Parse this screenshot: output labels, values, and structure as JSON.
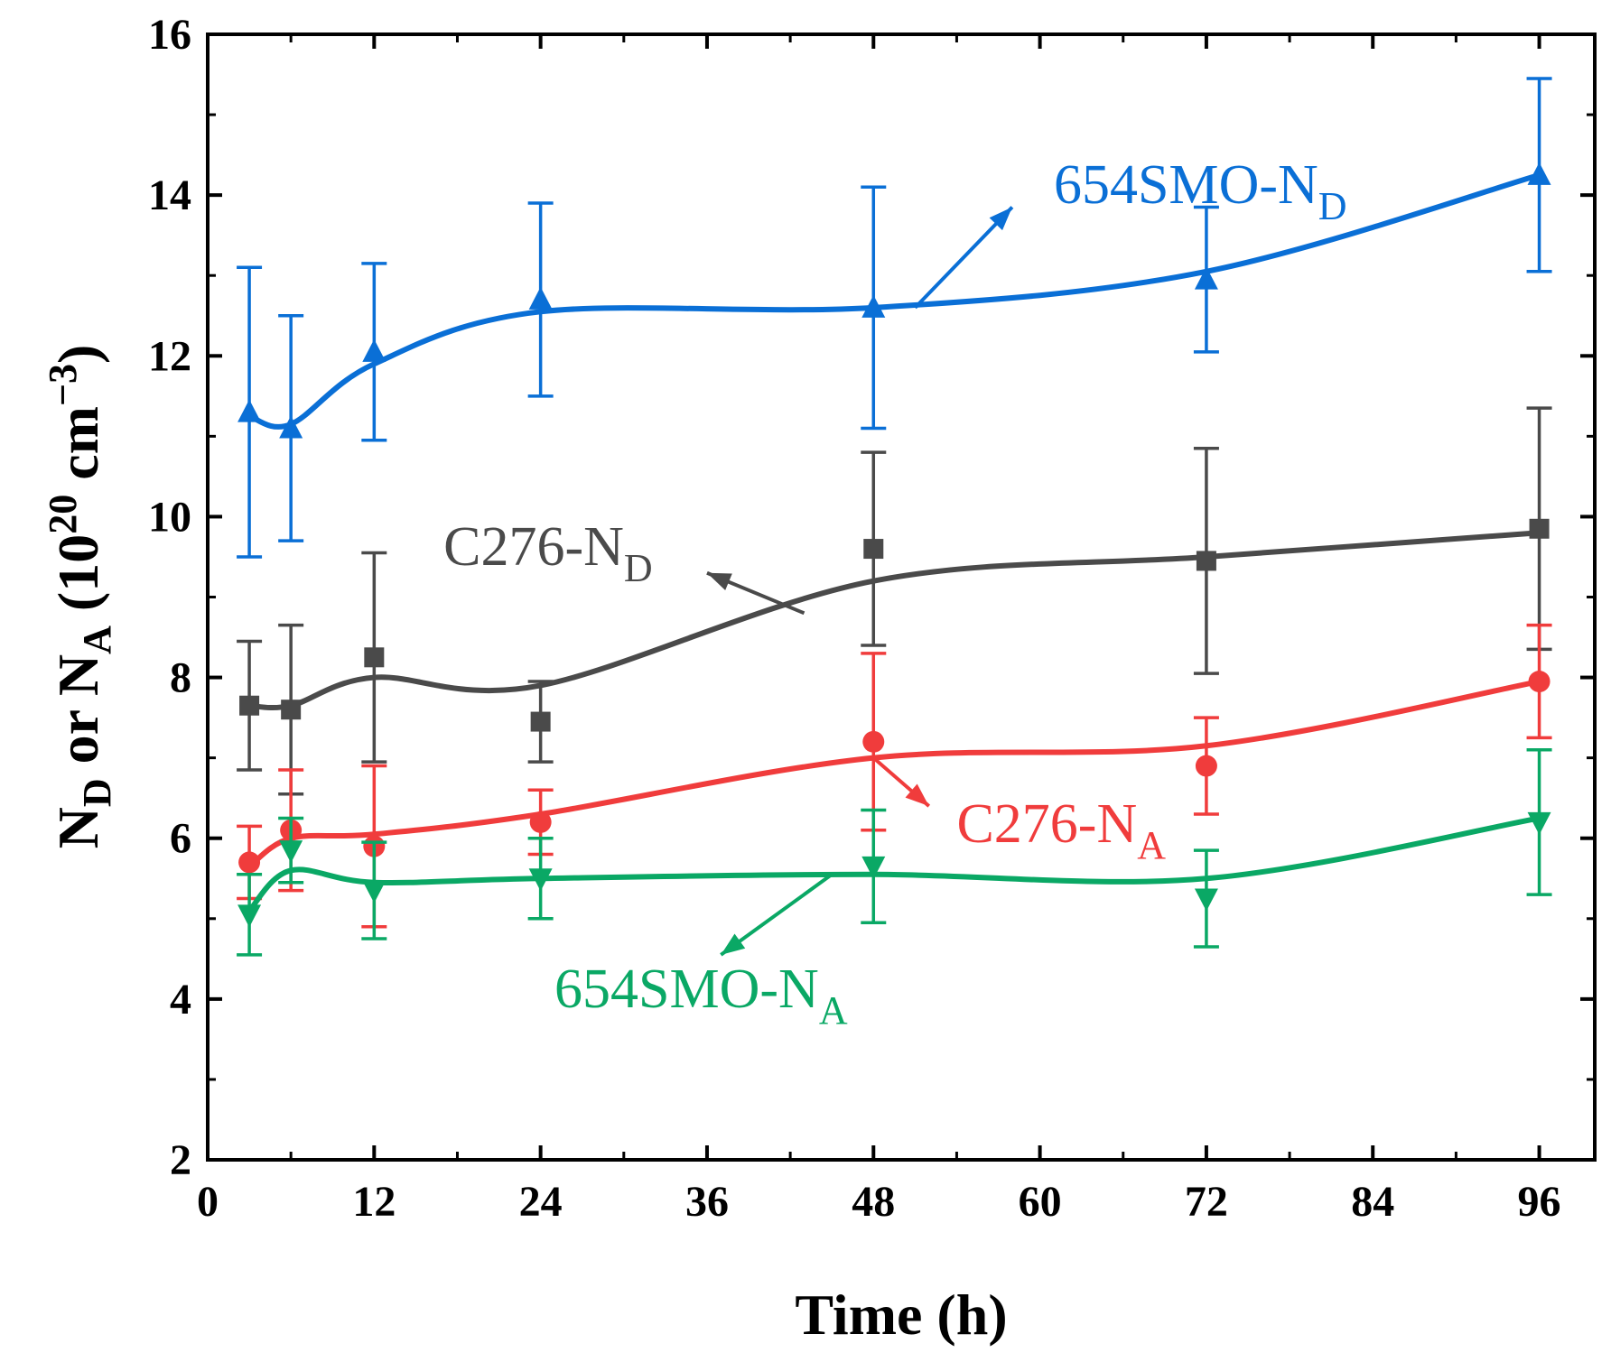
{
  "chart_data": {
    "type": "line",
    "title": "",
    "xlabel": "Time (h)",
    "ylabel": {
      "base": "N",
      "sub1": "D",
      "or": " or ",
      "sub2": "A",
      "unit_open": " (10",
      "sup1": "20",
      "unit_mid": " cm",
      "sup2": "−3",
      "unit_close": ")"
    },
    "xlim": [
      0,
      100
    ],
    "ylim": [
      2,
      16
    ],
    "xticks": [
      0,
      12,
      24,
      36,
      48,
      60,
      72,
      84,
      96
    ],
    "yticks": [
      2,
      4,
      6,
      8,
      10,
      12,
      14,
      16
    ],
    "x": [
      3,
      6,
      12,
      24,
      48,
      72,
      96
    ],
    "series": [
      {
        "id": "smo-nd",
        "label_main": "654SMO-N",
        "label_sub": "D",
        "color": "#0a6fd6",
        "marker": "triangle-up",
        "values": [
          11.3,
          11.1,
          12.05,
          12.7,
          12.6,
          12.95,
          14.25
        ],
        "err": [
          1.8,
          1.4,
          1.1,
          1.2,
          1.5,
          0.9,
          1.2
        ],
        "fit": [
          11.25,
          11.15,
          11.9,
          12.55,
          12.6,
          13.05,
          14.25
        ]
      },
      {
        "id": "c276-nd",
        "label_main": "C276-N",
        "label_sub": "D",
        "color": "#4a4a4a",
        "marker": "square",
        "values": [
          7.65,
          7.6,
          8.25,
          7.45,
          9.6,
          9.45,
          9.85
        ],
        "err": [
          0.8,
          1.05,
          1.3,
          0.5,
          1.2,
          1.4,
          1.5
        ],
        "fit": [
          7.65,
          7.65,
          8.0,
          7.9,
          9.2,
          9.5,
          9.8
        ]
      },
      {
        "id": "c276-na",
        "label_main": "C276-N",
        "label_sub": "A",
        "color": "#f03c3c",
        "marker": "circle",
        "values": [
          5.7,
          6.1,
          5.9,
          6.2,
          7.2,
          6.9,
          7.95
        ],
        "err": [
          0.45,
          0.75,
          1.0,
          0.4,
          1.1,
          0.6,
          0.7
        ],
        "fit": [
          5.65,
          6.0,
          6.05,
          6.3,
          7.0,
          7.15,
          7.95
        ]
      },
      {
        "id": "smo-na",
        "label_main": "654SMO-N",
        "label_sub": "A",
        "color": "#0aa865",
        "marker": "triangle-down",
        "values": [
          5.05,
          5.85,
          5.35,
          5.5,
          5.65,
          5.25,
          6.2
        ],
        "err": [
          0.5,
          0.4,
          0.6,
          0.5,
          0.7,
          0.6,
          0.9
        ],
        "fit": [
          5.1,
          5.6,
          5.45,
          5.5,
          5.55,
          5.5,
          6.25
        ]
      }
    ],
    "annotations": [
      {
        "series": "smo-nd",
        "text_x": 61,
        "text_y": 13.9,
        "from": [
          51,
          12.6
        ],
        "to": [
          58,
          13.85
        ]
      },
      {
        "series": "c276-nd",
        "text_x": 17,
        "text_y": 9.4,
        "from": [
          43,
          8.8
        ],
        "to": [
          36,
          9.3
        ]
      },
      {
        "series": "c276-na",
        "text_x": 54,
        "text_y": 5.95,
        "from": [
          48,
          7.0
        ],
        "to": [
          52,
          6.4
        ]
      },
      {
        "series": "smo-na",
        "text_x": 25,
        "text_y": 3.9,
        "from": [
          45,
          5.55
        ],
        "to": [
          37,
          4.55
        ]
      }
    ]
  }
}
